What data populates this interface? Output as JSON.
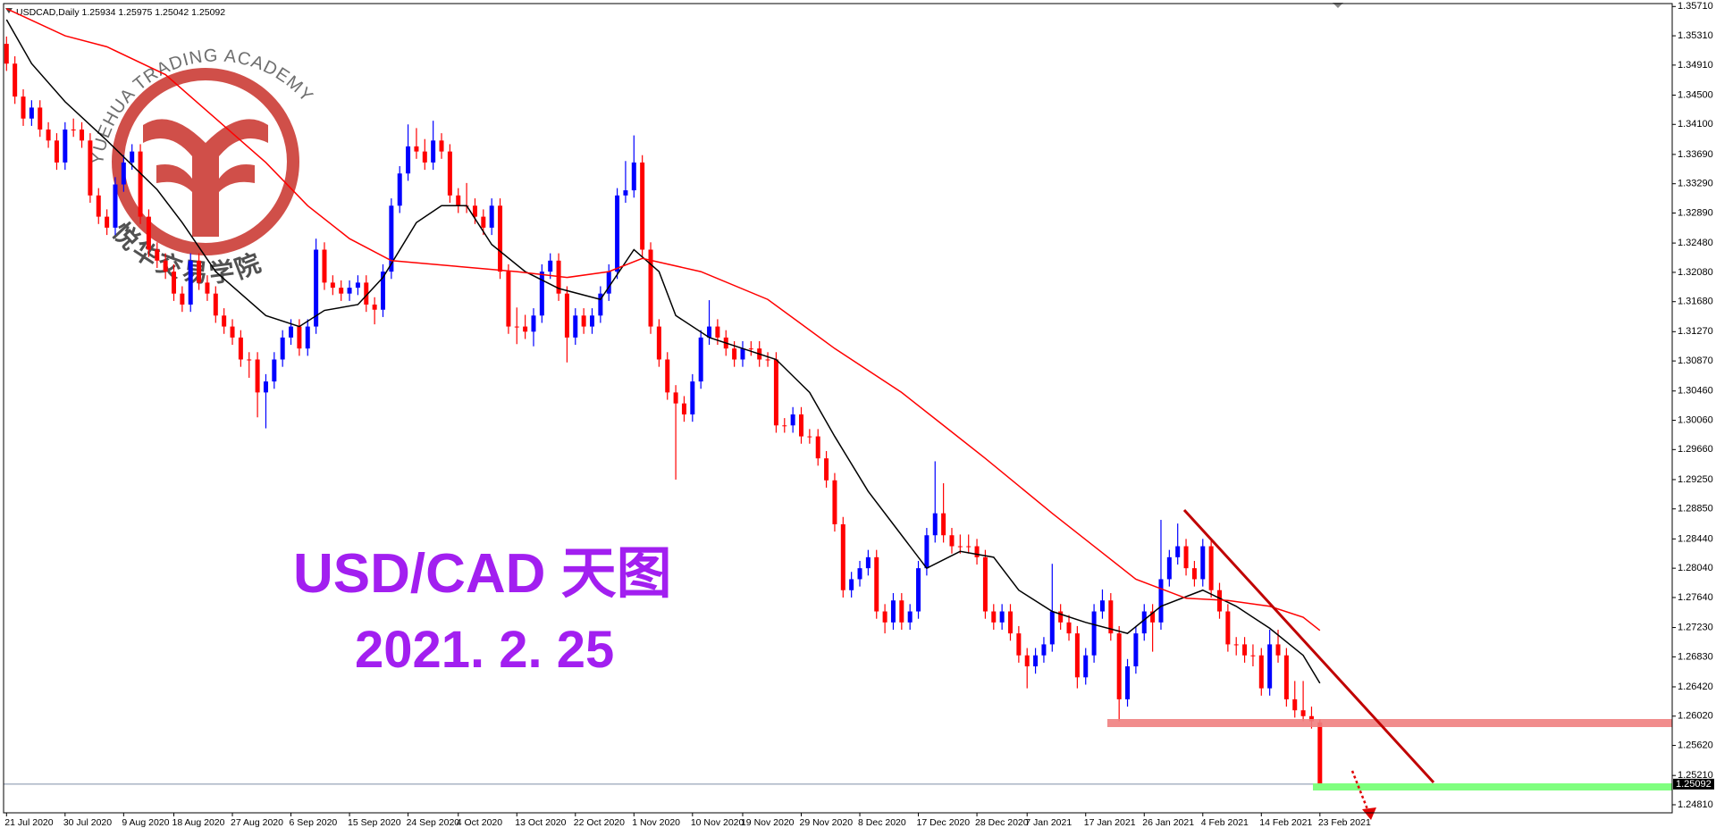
{
  "chart_data": {
    "type": "candlestick",
    "title": "USDCAD,Daily  1.25934 1.25975 1.25042 1.25092",
    "watermark": [
      "YUEHUA TRADING ACADEMY",
      "悦华交易学院"
    ],
    "annotations": [
      "USD/CAD 天图",
      "2021. 2. 25"
    ],
    "up_color": "#0000ff",
    "down_color": "#ff0000",
    "grid": false,
    "ylim": [
      1.247,
      1.3575
    ],
    "yticks": [
      {
        "value": 1.3571,
        "label": "1.35710"
      },
      {
        "value": 1.3531,
        "label": "1.35310"
      },
      {
        "value": 1.3491,
        "label": "1.34910"
      },
      {
        "value": 1.345,
        "label": "1.34500"
      },
      {
        "value": 1.341,
        "label": "1.34100"
      },
      {
        "value": 1.3369,
        "label": "1.33690"
      },
      {
        "value": 1.3329,
        "label": "1.33290"
      },
      {
        "value": 1.3289,
        "label": "1.32890"
      },
      {
        "value": 1.3248,
        "label": "1.32480"
      },
      {
        "value": 1.3208,
        "label": "1.32080"
      },
      {
        "value": 1.3168,
        "label": "1.31680"
      },
      {
        "value": 1.3127,
        "label": "1.31270"
      },
      {
        "value": 1.3087,
        "label": "1.30870"
      },
      {
        "value": 1.3046,
        "label": "1.30460"
      },
      {
        "value": 1.3006,
        "label": "1.30060"
      },
      {
        "value": 1.2966,
        "label": "1.29660"
      },
      {
        "value": 1.2925,
        "label": "1.29250"
      },
      {
        "value": 1.2885,
        "label": "1.28850"
      },
      {
        "value": 1.2844,
        "label": "1.28440"
      },
      {
        "value": 1.2804,
        "label": "1.28040"
      },
      {
        "value": 1.2764,
        "label": "1.27640"
      },
      {
        "value": 1.2723,
        "label": "1.27230"
      },
      {
        "value": 1.2683,
        "label": "1.26830"
      },
      {
        "value": 1.2642,
        "label": "1.26420"
      },
      {
        "value": 1.2602,
        "label": "1.26020"
      },
      {
        "value": 1.2562,
        "label": "1.25620"
      },
      {
        "value": 1.2521,
        "label": "1.25210"
      },
      {
        "value": 1.2481,
        "label": "1.24810"
      }
    ],
    "categories": [
      "21 Jul 2020",
      null,
      null,
      null,
      null,
      null,
      null,
      "30 Jul 2020",
      null,
      null,
      null,
      null,
      null,
      null,
      "9 Aug 2020",
      null,
      null,
      null,
      null,
      null,
      "18 Aug 2020",
      null,
      null,
      null,
      null,
      null,
      null,
      "27 Aug 2020",
      null,
      null,
      null,
      null,
      null,
      null,
      "6 Sep 2020",
      null,
      null,
      null,
      null,
      null,
      null,
      "15 Sep 2020",
      null,
      null,
      null,
      null,
      null,
      null,
      "24 Sep 2020",
      null,
      null,
      null,
      null,
      null,
      "4 Oct 2020",
      null,
      null,
      null,
      null,
      null,
      null,
      "13 Oct 2020",
      null,
      null,
      null,
      null,
      null,
      null,
      "22 Oct 2020",
      null,
      null,
      null,
      null,
      null,
      null,
      "1 Nov 2020",
      null,
      null,
      null,
      null,
      null,
      null,
      "10 Nov 2020",
      null,
      null,
      null,
      null,
      null,
      "19 Nov 2020",
      null,
      null,
      null,
      null,
      null,
      null,
      "29 Nov 2020",
      null,
      null,
      null,
      null,
      null,
      null,
      "8 Dec 2020",
      null,
      null,
      null,
      null,
      null,
      null,
      "17 Dec 2020",
      null,
      null,
      null,
      null,
      null,
      null,
      "28 Dec 2020",
      null,
      null,
      null,
      null,
      null,
      "7 Jan 2021",
      null,
      null,
      null,
      null,
      null,
      null,
      "17 Jan 2021",
      null,
      null,
      null,
      null,
      null,
      null,
      "26 Jan 2021",
      null,
      null,
      null,
      null,
      null,
      null,
      "4 Feb 2021",
      null,
      null,
      null,
      null,
      null,
      null,
      "14 Feb 2021",
      null,
      null,
      null,
      null,
      null,
      null,
      "23 Feb 2021"
    ],
    "ohlc": [
      [
        1.352,
        1.353,
        1.3483,
        1.3493
      ],
      [
        1.3493,
        1.3503,
        1.3438,
        1.3448
      ],
      [
        1.3448,
        1.3458,
        1.3408,
        1.3418
      ],
      [
        1.3418,
        1.3443,
        1.3408,
        1.3433
      ],
      [
        1.3433,
        1.3443,
        1.3393,
        1.3403
      ],
      [
        1.3403,
        1.3413,
        1.3378,
        1.3388
      ],
      [
        1.3388,
        1.3398,
        1.3348,
        1.3358
      ],
      [
        1.3358,
        1.3413,
        1.3348,
        1.3403
      ],
      [
        1.3403,
        1.3418,
        1.3393,
        1.3403
      ],
      [
        1.3403,
        1.3413,
        1.3378,
        1.3388
      ],
      [
        1.3388,
        1.3398,
        1.3303,
        1.3313
      ],
      [
        1.3313,
        1.3323,
        1.3274,
        1.3284
      ],
      [
        1.3284,
        1.3294,
        1.3259,
        1.3269
      ],
      [
        1.3269,
        1.3338,
        1.3259,
        1.3328
      ],
      [
        1.3328,
        1.3368,
        1.3318,
        1.3358
      ],
      [
        1.3358,
        1.3383,
        1.3348,
        1.3373
      ],
      [
        1.3373,
        1.3383,
        1.3274,
        1.3284
      ],
      [
        1.3284,
        1.3294,
        1.3229,
        1.3239
      ],
      [
        1.3239,
        1.3249,
        1.3214,
        1.3224
      ],
      [
        1.3224,
        1.3234,
        1.3199,
        1.3209
      ],
      [
        1.3209,
        1.3219,
        1.3169,
        1.3179
      ],
      [
        1.3179,
        1.3189,
        1.3154,
        1.3164
      ],
      [
        1.3164,
        1.3234,
        1.3154,
        1.3224
      ],
      [
        1.3224,
        1.3234,
        1.3184,
        1.3194
      ],
      [
        1.3194,
        1.3204,
        1.3169,
        1.3179
      ],
      [
        1.3179,
        1.3189,
        1.3139,
        1.3149
      ],
      [
        1.3149,
        1.3159,
        1.3124,
        1.3134
      ],
      [
        1.3134,
        1.3144,
        1.3109,
        1.3119
      ],
      [
        1.3119,
        1.3129,
        1.3079,
        1.3089
      ],
      [
        1.3089,
        1.3099,
        1.3064,
        1.3089
      ],
      [
        1.3089,
        1.3099,
        1.301,
        1.3044
      ],
      [
        1.3044,
        1.3069,
        1.2995,
        1.3059
      ],
      [
        1.3059,
        1.3099,
        1.3049,
        1.3089
      ],
      [
        1.3089,
        1.3129,
        1.3079,
        1.3119
      ],
      [
        1.3119,
        1.3144,
        1.3109,
        1.3134
      ],
      [
        1.3134,
        1.3144,
        1.3094,
        1.3104
      ],
      [
        1.3104,
        1.3144,
        1.3094,
        1.3134
      ],
      [
        1.3134,
        1.3254,
        1.3124,
        1.3239
      ],
      [
        1.3239,
        1.3249,
        1.3184,
        1.3194
      ],
      [
        1.3194,
        1.3204,
        1.3177,
        1.3187
      ],
      [
        1.3187,
        1.3197,
        1.3169,
        1.3179
      ],
      [
        1.3179,
        1.3197,
        1.3169,
        1.3187
      ],
      [
        1.3187,
        1.3204,
        1.3177,
        1.3194
      ],
      [
        1.3194,
        1.3204,
        1.3154,
        1.3164
      ],
      [
        1.3164,
        1.3174,
        1.3137,
        1.3157
      ],
      [
        1.3157,
        1.3219,
        1.3147,
        1.3209
      ],
      [
        1.3209,
        1.3309,
        1.3199,
        1.3299
      ],
      [
        1.3299,
        1.3353,
        1.3289,
        1.3343
      ],
      [
        1.3343,
        1.341,
        1.3333,
        1.338
      ],
      [
        1.338,
        1.3405,
        1.3363,
        1.3373
      ],
      [
        1.3373,
        1.339,
        1.3348,
        1.3358
      ],
      [
        1.3358,
        1.3415,
        1.3348,
        1.3388
      ],
      [
        1.3388,
        1.3398,
        1.3363,
        1.3373
      ],
      [
        1.3373,
        1.3383,
        1.3303,
        1.3313
      ],
      [
        1.3313,
        1.3323,
        1.3289,
        1.3299
      ],
      [
        1.3299,
        1.333,
        1.3289,
        1.3299
      ],
      [
        1.3299,
        1.3309,
        1.3274,
        1.3284
      ],
      [
        1.3284,
        1.3294,
        1.3259,
        1.3269
      ],
      [
        1.3269,
        1.3309,
        1.3259,
        1.3299
      ],
      [
        1.3299,
        1.3309,
        1.3199,
        1.3209
      ],
      [
        1.3209,
        1.3219,
        1.3124,
        1.3134
      ],
      [
        1.3134,
        1.316,
        1.311,
        1.3134
      ],
      [
        1.3134,
        1.315,
        1.3117,
        1.3127
      ],
      [
        1.3127,
        1.3159,
        1.3107,
        1.3149
      ],
      [
        1.3149,
        1.3219,
        1.3139,
        1.3209
      ],
      [
        1.3209,
        1.3234,
        1.3199,
        1.3224
      ],
      [
        1.3224,
        1.3234,
        1.3169,
        1.3179
      ],
      [
        1.3179,
        1.3189,
        1.3085,
        1.3119
      ],
      [
        1.3119,
        1.3159,
        1.3109,
        1.3149
      ],
      [
        1.3149,
        1.3159,
        1.3124,
        1.3134
      ],
      [
        1.3134,
        1.3159,
        1.3124,
        1.3149
      ],
      [
        1.3149,
        1.3189,
        1.3139,
        1.3179
      ],
      [
        1.3179,
        1.3219,
        1.3169,
        1.3209
      ],
      [
        1.3209,
        1.3323,
        1.3199,
        1.3313
      ],
      [
        1.3313,
        1.336,
        1.3303,
        1.332
      ],
      [
        1.332,
        1.3395,
        1.331,
        1.3358
      ],
      [
        1.3358,
        1.3368,
        1.3229,
        1.3239
      ],
      [
        1.3239,
        1.3249,
        1.3124,
        1.3134
      ],
      [
        1.3134,
        1.3144,
        1.3079,
        1.3089
      ],
      [
        1.3089,
        1.3099,
        1.3034,
        1.3044
      ],
      [
        1.3044,
        1.3054,
        1.2925,
        1.3029
      ],
      [
        1.3029,
        1.3039,
        1.3004,
        1.3014
      ],
      [
        1.3014,
        1.3069,
        1.3004,
        1.3059
      ],
      [
        1.3059,
        1.3129,
        1.3049,
        1.3119
      ],
      [
        1.3119,
        1.317,
        1.3109,
        1.3134
      ],
      [
        1.3134,
        1.3144,
        1.3109,
        1.3119
      ],
      [
        1.3119,
        1.3129,
        1.3094,
        1.3104
      ],
      [
        1.3104,
        1.3114,
        1.3079,
        1.3089
      ],
      [
        1.3089,
        1.3114,
        1.3079,
        1.3104
      ],
      [
        1.3104,
        1.3114,
        1.3094,
        1.3104
      ],
      [
        1.3104,
        1.3114,
        1.3079,
        1.3089
      ],
      [
        1.3089,
        1.3099,
        1.3079,
        1.3089
      ],
      [
        1.3089,
        1.3099,
        1.2989,
        1.2999
      ],
      [
        1.2999,
        1.3009,
        1.2989,
        1.2999
      ],
      [
        1.2999,
        1.3024,
        1.2989,
        1.3014
      ],
      [
        1.3014,
        1.3024,
        1.2974,
        1.2984
      ],
      [
        1.2984,
        1.2994,
        1.2974,
        1.2984
      ],
      [
        1.2984,
        1.2994,
        1.2944,
        1.2954
      ],
      [
        1.2954,
        1.2964,
        1.2914,
        1.2924
      ],
      [
        1.2924,
        1.2934,
        1.2854,
        1.2864
      ],
      [
        1.2864,
        1.2874,
        1.2764,
        1.2774
      ],
      [
        1.2774,
        1.2799,
        1.2764,
        1.2789
      ],
      [
        1.2789,
        1.2814,
        1.2779,
        1.2804
      ],
      [
        1.2804,
        1.2829,
        1.2794,
        1.2819
      ],
      [
        1.2819,
        1.2829,
        1.2735,
        1.2745
      ],
      [
        1.2745,
        1.2755,
        1.2715,
        1.273
      ],
      [
        1.273,
        1.277,
        1.272,
        1.276
      ],
      [
        1.276,
        1.277,
        1.272,
        1.273
      ],
      [
        1.273,
        1.2755,
        1.272,
        1.2745
      ],
      [
        1.2745,
        1.2814,
        1.2735,
        1.2804
      ],
      [
        1.2804,
        1.2859,
        1.2794,
        1.2849
      ],
      [
        1.2849,
        1.295,
        1.2839,
        1.2879
      ],
      [
        1.2879,
        1.292,
        1.2839,
        1.2849
      ],
      [
        1.2849,
        1.2859,
        1.2824,
        1.2834
      ],
      [
        1.2834,
        1.285,
        1.2824,
        1.2834
      ],
      [
        1.2834,
        1.285,
        1.2824,
        1.2834
      ],
      [
        1.2834,
        1.2844,
        1.2809,
        1.2819
      ],
      [
        1.2819,
        1.2829,
        1.2735,
        1.2745
      ],
      [
        1.2745,
        1.2755,
        1.272,
        1.273
      ],
      [
        1.273,
        1.2755,
        1.272,
        1.2745
      ],
      [
        1.2745,
        1.2755,
        1.2705,
        1.2715
      ],
      [
        1.2715,
        1.2725,
        1.2675,
        1.2685
      ],
      [
        1.2685,
        1.2695,
        1.264,
        1.267
      ],
      [
        1.267,
        1.2695,
        1.266,
        1.2685
      ],
      [
        1.2685,
        1.271,
        1.2675,
        1.27
      ],
      [
        1.27,
        1.281,
        1.269,
        1.2745
      ],
      [
        1.2745,
        1.2755,
        1.272,
        1.273
      ],
      [
        1.273,
        1.274,
        1.2705,
        1.2715
      ],
      [
        1.2715,
        1.2725,
        1.264,
        1.2655
      ],
      [
        1.2655,
        1.2695,
        1.2645,
        1.2685
      ],
      [
        1.2685,
        1.2755,
        1.2675,
        1.2745
      ],
      [
        1.2745,
        1.2775,
        1.2735,
        1.276
      ],
      [
        1.276,
        1.277,
        1.2705,
        1.2715
      ],
      [
        1.2715,
        1.2725,
        1.2595,
        1.2625
      ],
      [
        1.2625,
        1.268,
        1.2615,
        1.267
      ],
      [
        1.267,
        1.2725,
        1.266,
        1.2715
      ],
      [
        1.2715,
        1.2755,
        1.2705,
        1.2745
      ],
      [
        1.2745,
        1.2755,
        1.269,
        1.273
      ],
      [
        1.273,
        1.287,
        1.272,
        1.2789
      ],
      [
        1.2789,
        1.2829,
        1.2779,
        1.2819
      ],
      [
        1.2819,
        1.2865,
        1.2809,
        1.2834
      ],
      [
        1.2834,
        1.2844,
        1.2794,
        1.2804
      ],
      [
        1.2804,
        1.2814,
        1.2779,
        1.2789
      ],
      [
        1.2789,
        1.2844,
        1.2779,
        1.2834
      ],
      [
        1.2834,
        1.2844,
        1.2764,
        1.2774
      ],
      [
        1.2774,
        1.2784,
        1.2735,
        1.2745
      ],
      [
        1.2745,
        1.2755,
        1.269,
        1.27
      ],
      [
        1.27,
        1.271,
        1.2685,
        1.27
      ],
      [
        1.27,
        1.271,
        1.2675,
        1.2685
      ],
      [
        1.2685,
        1.27,
        1.267,
        1.2685
      ],
      [
        1.2685,
        1.2695,
        1.263,
        1.264
      ],
      [
        1.264,
        1.272,
        1.263,
        1.27
      ],
      [
        1.27,
        1.272,
        1.2675,
        1.2685
      ],
      [
        1.2685,
        1.2695,
        1.2615,
        1.2625
      ],
      [
        1.2625,
        1.265,
        1.26,
        1.261
      ],
      [
        1.261,
        1.265,
        1.2595,
        1.2602
      ],
      [
        1.2602,
        1.2615,
        1.2585,
        1.2595
      ],
      [
        1.25934,
        1.25975,
        1.25042,
        1.25092
      ]
    ],
    "series": [
      {
        "color": "#000000",
        "x": [
          0,
          3,
          7,
          12,
          18,
          21,
          25,
          31,
          35,
          38,
          42,
          45,
          49,
          52,
          55,
          58,
          62,
          66,
          71,
          75,
          78,
          80,
          84,
          88,
          92,
          96,
          99,
          103,
          107,
          110,
          114,
          118,
          121,
          125,
          129,
          134,
          138,
          143,
          147,
          151,
          155,
          157
        ],
        "values": [
          1.3553,
          1.3493,
          1.3441,
          1.3388,
          1.3321,
          1.3276,
          1.3209,
          1.3149,
          1.3134,
          1.3156,
          1.3164,
          1.3201,
          1.3276,
          1.3299,
          1.3299,
          1.3246,
          1.3209,
          1.3186,
          1.3171,
          1.3239,
          1.3209,
          1.3149,
          1.3119,
          1.3104,
          1.3089,
          1.3044,
          1.2984,
          1.2909,
          1.2849,
          1.2804,
          1.2827,
          1.2819,
          1.2774,
          1.2745,
          1.273,
          1.2715,
          1.2752,
          1.2774,
          1.2752,
          1.2722,
          1.2685,
          1.2647
        ]
      },
      {
        "color": "#ff0000",
        "x": [
          0,
          7,
          12,
          19,
          25,
          31,
          36,
          41,
          46,
          54,
          61,
          67,
          72,
          76,
          83,
          91,
          99,
          107,
          112,
          117,
          125,
          130,
          135,
          141,
          146,
          151,
          155,
          157
        ],
        "values": [
          1.3568,
          1.3531,
          1.3516,
          1.3478,
          1.3418,
          1.3358,
          1.3299,
          1.3254,
          1.3224,
          1.3216,
          1.3209,
          1.3201,
          1.3209,
          1.3227,
          1.3209,
          1.3171,
          1.3104,
          1.3044,
          1.2999,
          1.2954,
          1.2879,
          1.2834,
          1.2789,
          1.2763,
          1.276,
          1.2752,
          1.2737,
          1.2719
        ]
      }
    ]
  }
}
